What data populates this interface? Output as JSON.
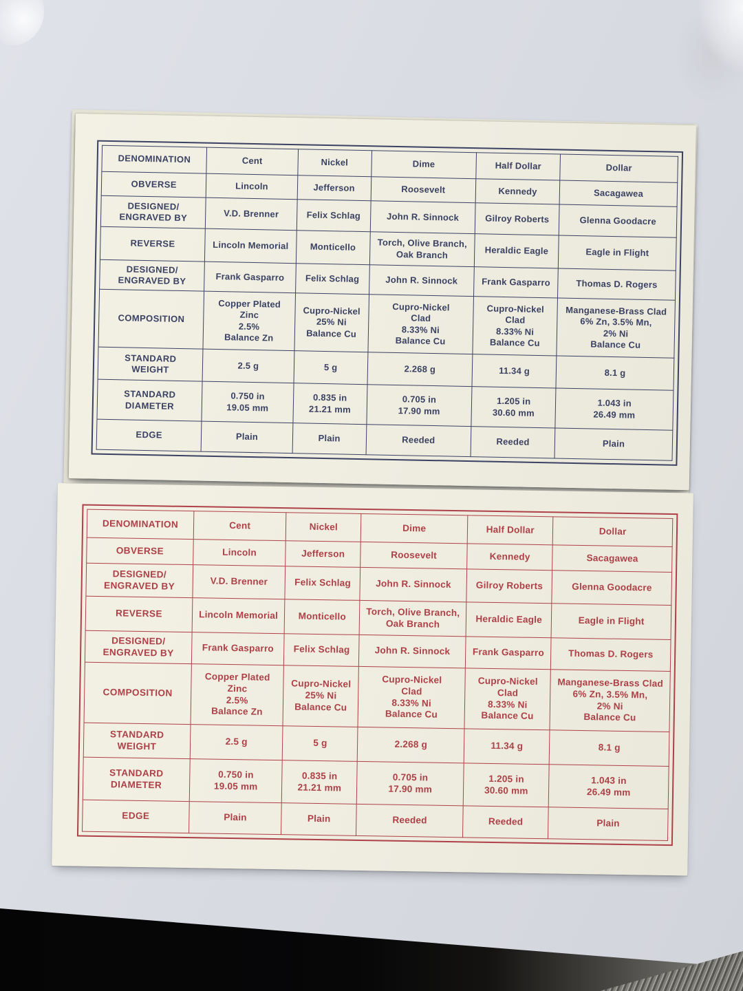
{
  "scene": {
    "surface_color": "#d6d8df",
    "card_paper_color": "#efede0",
    "desk_edge_color": "#050506"
  },
  "cards": [
    {
      "name": "blue-coin-spec-card",
      "accent_color": "#3a4162"
    },
    {
      "name": "red-coin-spec-card",
      "accent_color": "#ae4047"
    }
  ],
  "table": {
    "rows": [
      {
        "label": "DENOMINATION",
        "values": [
          "Cent",
          "Nickel",
          "Dime",
          "Half Dollar",
          "Dollar"
        ]
      },
      {
        "label": "OBVERSE",
        "values": [
          "Lincoln",
          "Jefferson",
          "Roosevelt",
          "Kennedy",
          "Sacagawea"
        ]
      },
      {
        "label": "DESIGNED/\nENGRAVED BY",
        "values": [
          "V.D. Brenner",
          "Felix Schlag",
          "John R. Sinnock",
          "Gilroy Roberts",
          "Glenna Goodacre"
        ]
      },
      {
        "label": "REVERSE",
        "values": [
          "Lincoln Memorial",
          "Monticello",
          "Torch, Olive Branch,\nOak Branch",
          "Heraldic Eagle",
          "Eagle in Flight"
        ]
      },
      {
        "label": "DESIGNED/\nENGRAVED BY",
        "values": [
          "Frank Gasparro",
          "Felix Schlag",
          "John R. Sinnock",
          "Frank Gasparro",
          "Thomas D. Rogers"
        ]
      },
      {
        "label": "COMPOSITION",
        "values": [
          "Copper Plated\nZinc\n2.5%\nBalance Zn",
          "Cupro-Nickel\n25% Ni\nBalance Cu",
          "Cupro-Nickel\nClad\n8.33% Ni\nBalance Cu",
          "Cupro-Nickel\nClad\n8.33% Ni\nBalance Cu",
          "Manganese-Brass Clad\n6% Zn, 3.5% Mn,\n2% Ni\nBalance Cu"
        ]
      },
      {
        "label": "STANDARD\nWEIGHT",
        "values": [
          "2.5 g",
          "5 g",
          "2.268 g",
          "11.34 g",
          "8.1 g"
        ]
      },
      {
        "label": "STANDARD\nDIAMETER",
        "values": [
          "0.750 in\n19.05 mm",
          "0.835 in\n21.21 mm",
          "0.705 in\n17.90 mm",
          "1.205 in\n30.60 mm",
          "1.043 in\n26.49 mm"
        ]
      },
      {
        "label": "EDGE",
        "values": [
          "Plain",
          "Plain",
          "Reeded",
          "Reeded",
          "Plain"
        ]
      }
    ]
  }
}
